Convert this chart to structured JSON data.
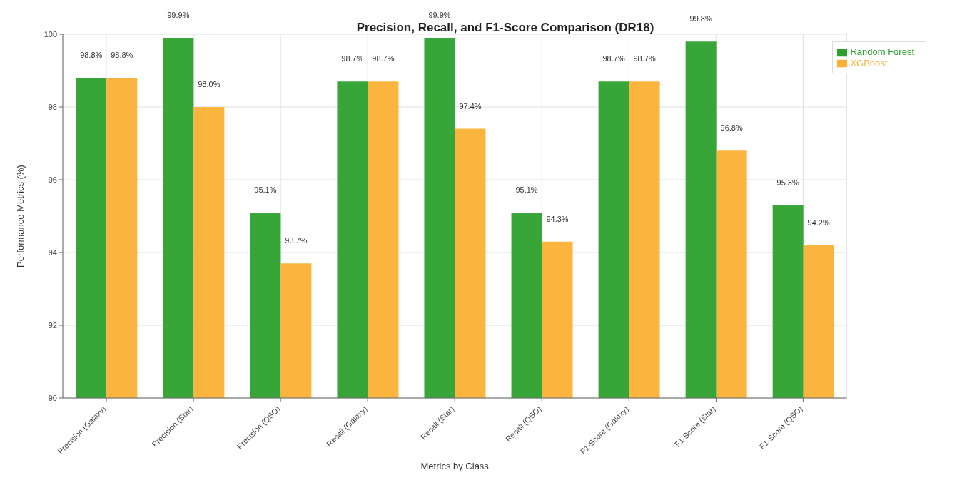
{
  "chart_data": {
    "type": "bar",
    "title": "Precision, Recall, and F1-Score Comparison (DR18)",
    "xlabel": "Metrics by Class",
    "ylabel": "Performance Metrics (%)",
    "categories": [
      "Precision (Galaxy)",
      "Precision (Star)",
      "Precision (QSO)",
      "Recall (Galaxy)",
      "Recall (Star)",
      "Recall (QSO)",
      "F1-Score (Galaxy)",
      "F1-Score (Star)",
      "F1-Score (QSO)"
    ],
    "series": [
      {
        "name": "Random Forest",
        "color": "#2ca02c",
        "values": [
          98.8,
          99.9,
          95.1,
          98.7,
          99.9,
          95.1,
          98.7,
          99.8,
          95.3
        ],
        "value_labels": [
          "98.8%",
          "99.9%",
          "95.1%",
          "98.7%",
          "99.9%",
          "95.1%",
          "98.7%",
          "99.8%",
          "95.3%"
        ]
      },
      {
        "name": "XGBoost",
        "color": "#fbb034",
        "values": [
          98.8,
          98.0,
          93.7,
          98.7,
          97.4,
          94.3,
          98.7,
          96.8,
          94.2
        ],
        "value_labels": [
          "98.8%",
          "98.0%",
          "93.7%",
          "98.7%",
          "97.4%",
          "94.3%",
          "98.7%",
          "96.8%",
          "94.2%"
        ]
      }
    ],
    "ylim": [
      90,
      100
    ],
    "yticks": [
      90,
      92,
      94,
      96,
      98,
      100
    ],
    "grid": true,
    "legend": "top right"
  }
}
